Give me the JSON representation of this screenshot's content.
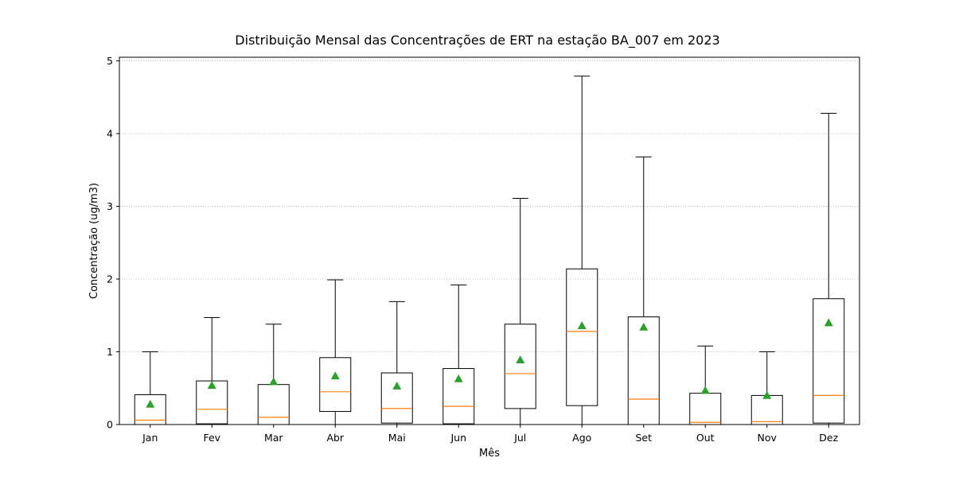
{
  "chart_data": {
    "type": "boxplot",
    "title": "Distribuição Mensal das Concentrações de ERT na estação BA_007 em 2023",
    "xlabel": "Mês",
    "ylabel": "Concentração (ug/m3)",
    "ylim": [
      0,
      5.05
    ],
    "yticks": [
      0,
      1,
      2,
      3,
      4,
      5
    ],
    "grid": "y-dotted",
    "colors": {
      "box": "#000000",
      "median": "#ff7f0e",
      "mean": "#2ca02c",
      "grid": "#b0b0b0"
    },
    "categories": [
      "Jan",
      "Fev",
      "Mar",
      "Abr",
      "Mai",
      "Jun",
      "Jul",
      "Ago",
      "Set",
      "Out",
      "Nov",
      "Dez"
    ],
    "boxes": [
      {
        "whislo": 0,
        "q1": 0.0,
        "med": 0.06,
        "q3": 0.41,
        "whishi": 1.0,
        "mean": 0.28
      },
      {
        "whislo": 0,
        "q1": 0.01,
        "med": 0.21,
        "q3": 0.6,
        "whishi": 1.47,
        "mean": 0.54
      },
      {
        "whislo": 0,
        "q1": 0.0,
        "med": 0.1,
        "q3": 0.55,
        "whishi": 1.38,
        "mean": 0.59
      },
      {
        "whislo": 0,
        "q1": 0.18,
        "med": 0.45,
        "q3": 0.92,
        "whishi": 1.99,
        "mean": 0.67
      },
      {
        "whislo": 0,
        "q1": 0.02,
        "med": 0.22,
        "q3": 0.71,
        "whishi": 1.69,
        "mean": 0.53
      },
      {
        "whislo": 0,
        "q1": 0.01,
        "med": 0.25,
        "q3": 0.77,
        "whishi": 1.92,
        "mean": 0.63
      },
      {
        "whislo": 0,
        "q1": 0.22,
        "med": 0.7,
        "q3": 1.38,
        "whishi": 3.11,
        "mean": 0.89
      },
      {
        "whislo": 0,
        "q1": 0.26,
        "med": 1.28,
        "q3": 2.14,
        "whishi": 4.79,
        "mean": 1.36
      },
      {
        "whislo": 0,
        "q1": 0.0,
        "med": 0.35,
        "q3": 1.48,
        "whishi": 3.68,
        "mean": 1.34
      },
      {
        "whislo": 0,
        "q1": 0.0,
        "med": 0.03,
        "q3": 0.43,
        "whishi": 1.08,
        "mean": 0.47
      },
      {
        "whislo": 0,
        "q1": 0.0,
        "med": 0.04,
        "q3": 0.4,
        "whishi": 1.0,
        "mean": 0.4
      },
      {
        "whislo": 0,
        "q1": 0.02,
        "med": 0.4,
        "q3": 1.73,
        "whishi": 4.28,
        "mean": 1.4
      }
    ]
  }
}
